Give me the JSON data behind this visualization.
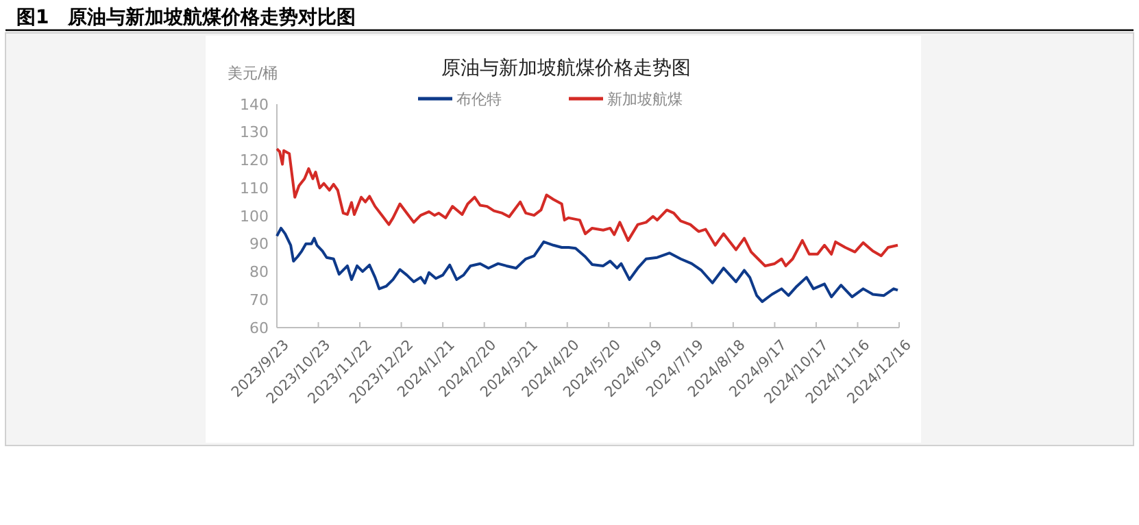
{
  "chart_data": {
    "type": "line",
    "title": "图1　原油与新加坡航煤价格走势对比图",
    "subtitle": "原油与新加坡航煤价格走势图",
    "ylabel": "美元/桶",
    "legend": "top",
    "grid": false,
    "xlim": [
      "2023-09-23",
      "2024-12-16"
    ],
    "xticks": [
      {
        "value": "2023-09-23",
        "label": "2023/9/23"
      },
      {
        "value": "2023-10-23",
        "label": "2023/10/23"
      },
      {
        "value": "2023-11-22",
        "label": "2023/11/22"
      },
      {
        "value": "2023-12-22",
        "label": "2023/12/22"
      },
      {
        "value": "2024-01-21",
        "label": "2024/1/21"
      },
      {
        "value": "2024-02-20",
        "label": "2024/2/20"
      },
      {
        "value": "2024-03-21",
        "label": "2024/3/21"
      },
      {
        "value": "2024-04-20",
        "label": "2024/4/20"
      },
      {
        "value": "2024-05-20",
        "label": "2024/5/20"
      },
      {
        "value": "2024-06-19",
        "label": "2024/6/19"
      },
      {
        "value": "2024-07-19",
        "label": "2024/7/19"
      },
      {
        "value": "2024-08-18",
        "label": "2024/8/18"
      },
      {
        "value": "2024-09-17",
        "label": "2024/9/17"
      },
      {
        "value": "2024-10-17",
        "label": "2024/10/17"
      },
      {
        "value": "2024-11-16",
        "label": "2024/11/16"
      },
      {
        "value": "2024-12-16",
        "label": "2024/12/16"
      }
    ],
    "ylim": [
      60,
      140
    ],
    "yticks": [
      60,
      70,
      80,
      90,
      100,
      110,
      120,
      130,
      140
    ],
    "series": [
      {
        "name": "布伦特",
        "color": "#0e3a8a",
        "x": [
          "2023-09-23",
          "2023-09-26",
          "2023-09-29",
          "2023-10-03",
          "2023-10-05",
          "2023-10-08",
          "2023-10-11",
          "2023-10-14",
          "2023-10-18",
          "2023-10-20",
          "2023-10-22",
          "2023-10-26",
          "2023-10-29",
          "2023-11-03",
          "2023-11-07",
          "2023-11-13",
          "2023-11-16",
          "2023-11-20",
          "2023-11-24",
          "2023-11-29",
          "2023-12-03",
          "2023-12-06",
          "2023-12-11",
          "2023-12-16",
          "2023-12-21",
          "2023-12-26",
          "2023-12-31",
          "2024-01-05",
          "2024-01-08",
          "2024-01-11",
          "2024-01-16",
          "2024-01-21",
          "2024-01-26",
          "2024-01-31",
          "2024-02-05",
          "2024-02-10",
          "2024-02-17",
          "2024-02-23",
          "2024-03-01",
          "2024-03-07",
          "2024-03-14",
          "2024-03-21",
          "2024-03-27",
          "2024-04-03",
          "2024-04-10",
          "2024-04-16",
          "2024-04-21",
          "2024-04-26",
          "2024-05-03",
          "2024-05-08",
          "2024-05-16",
          "2024-05-21",
          "2024-05-26",
          "2024-05-29",
          "2024-06-04",
          "2024-06-10",
          "2024-06-16",
          "2024-06-24",
          "2024-07-03",
          "2024-07-11",
          "2024-07-19",
          "2024-07-26",
          "2024-08-03",
          "2024-08-11",
          "2024-08-20",
          "2024-08-26",
          "2024-08-30",
          "2024-09-04",
          "2024-09-08",
          "2024-09-15",
          "2024-09-22",
          "2024-09-27",
          "2024-10-03",
          "2024-10-10",
          "2024-10-15",
          "2024-10-23",
          "2024-10-28",
          "2024-11-04",
          "2024-11-12",
          "2024-11-20",
          "2024-11-27",
          "2024-12-05",
          "2024-12-12",
          "2024-12-15"
        ],
        "values": [
          92.8,
          95.6,
          93.6,
          89.5,
          83.8,
          85.4,
          87.4,
          90,
          90,
          92,
          89.5,
          87.4,
          85.1,
          84.6,
          79.1,
          82.1,
          77.2,
          82.1,
          80.1,
          82.4,
          78,
          73.9,
          74.8,
          77.2,
          80.8,
          78.8,
          76.4,
          78,
          75.9,
          79.7,
          77.6,
          78.8,
          82.4,
          77.2,
          78.8,
          82.1,
          82.9,
          81.3,
          82.9,
          82.1,
          81.3,
          84.6,
          85.7,
          90.7,
          89.5,
          88.7,
          88.7,
          88.4,
          85.4,
          82.6,
          82.1,
          83.8,
          81.3,
          82.9,
          77.2,
          81.3,
          84.6,
          85.1,
          86.7,
          84.6,
          82.9,
          80.5,
          76,
          81.3,
          76.4,
          80.5,
          78,
          71.5,
          69.3,
          71.9,
          73.9,
          71.5,
          74.8,
          78,
          73.9,
          75.6,
          71,
          75.2,
          71,
          73.9,
          71.9,
          71.5,
          73.9,
          73.4
        ]
      },
      {
        "name": "新加坡航煤",
        "color": "#d42b26",
        "x": [
          "2023-09-23",
          "2023-09-25",
          "2023-09-27",
          "2023-09-28",
          "2023-10-02",
          "2023-10-06",
          "2023-10-09",
          "2023-10-13",
          "2023-10-16",
          "2023-10-19",
          "2023-10-21",
          "2023-10-24",
          "2023-10-27",
          "2023-10-31",
          "2023-11-03",
          "2023-11-06",
          "2023-11-10",
          "2023-11-13",
          "2023-11-16",
          "2023-11-18",
          "2023-11-23",
          "2023-11-26",
          "2023-11-29",
          "2023-12-03",
          "2023-12-08",
          "2023-12-13",
          "2023-12-16",
          "2023-12-21",
          "2023-12-26",
          "2023-12-31",
          "2024-01-05",
          "2024-01-11",
          "2024-01-15",
          "2024-01-18",
          "2024-01-23",
          "2024-01-28",
          "2024-02-04",
          "2024-02-08",
          "2024-02-13",
          "2024-02-17",
          "2024-02-22",
          "2024-02-27",
          "2024-03-04",
          "2024-03-09",
          "2024-03-17",
          "2024-03-21",
          "2024-03-27",
          "2024-04-01",
          "2024-04-05",
          "2024-04-10",
          "2024-04-16",
          "2024-04-18",
          "2024-04-21",
          "2024-04-29",
          "2024-05-03",
          "2024-05-08",
          "2024-05-16",
          "2024-05-21",
          "2024-05-24",
          "2024-05-28",
          "2024-06-03",
          "2024-06-10",
          "2024-06-16",
          "2024-06-21",
          "2024-06-24",
          "2024-07-01",
          "2024-07-06",
          "2024-07-11",
          "2024-07-18",
          "2024-07-24",
          "2024-07-29",
          "2024-08-05",
          "2024-08-11",
          "2024-08-20",
          "2024-08-26",
          "2024-08-31",
          "2024-09-05",
          "2024-09-10",
          "2024-09-17",
          "2024-09-22",
          "2024-09-25",
          "2024-09-30",
          "2024-10-07",
          "2024-10-12",
          "2024-10-18",
          "2024-10-23",
          "2024-10-28",
          "2024-10-31",
          "2024-11-07",
          "2024-11-14",
          "2024-11-20",
          "2024-11-27",
          "2024-12-03",
          "2024-12-08",
          "2024-12-15"
        ],
        "values": [
          124,
          123,
          118.5,
          123.4,
          122.3,
          106.7,
          110.8,
          113.3,
          116.9,
          113.3,
          115.7,
          110,
          111.6,
          109.2,
          111.3,
          109.2,
          101,
          100.5,
          104.8,
          100.5,
          106.7,
          105,
          107,
          103.4,
          100.2,
          96.9,
          99.3,
          104.3,
          101,
          97.7,
          100.2,
          101.5,
          100.2,
          101,
          99.3,
          103.4,
          100.5,
          104.3,
          106.7,
          103.8,
          103.4,
          101.8,
          101,
          99.7,
          105,
          101,
          100.2,
          102.1,
          107.5,
          105.9,
          104.3,
          98.5,
          99.3,
          98.5,
          93.6,
          95.6,
          94.9,
          95.6,
          93.3,
          97.7,
          91.2,
          96.9,
          97.7,
          99.8,
          98.5,
          102.1,
          101,
          98.2,
          96.9,
          94.4,
          95.2,
          89.5,
          93.6,
          87.9,
          92,
          87.1,
          84.6,
          82.1,
          82.9,
          84.6,
          82.1,
          84.6,
          91.2,
          86.3,
          86.3,
          89.5,
          86.3,
          90.7,
          88.7,
          87.1,
          90.4,
          87.4,
          85.7,
          88.7,
          89.5
        ]
      }
    ]
  }
}
